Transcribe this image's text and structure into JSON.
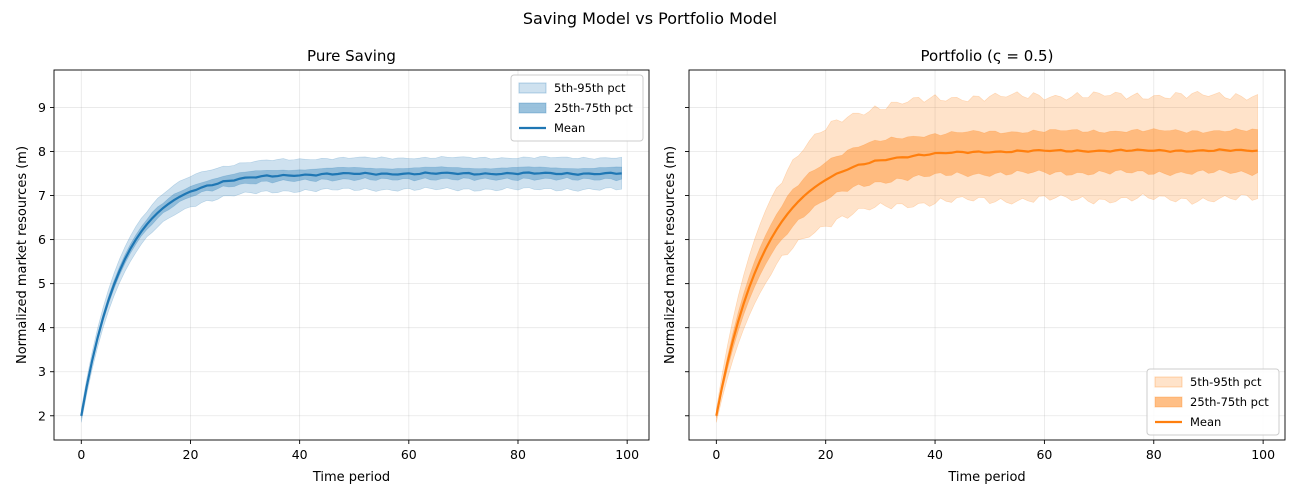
{
  "figure": {
    "title": "Saving Model vs Portfolio Model",
    "colors": {
      "blue": "#1f77b4",
      "orange": "#ff7f0e"
    }
  },
  "chart_data": [
    {
      "type": "area",
      "title": "Pure Saving",
      "xlabel": "Time period",
      "ylabel": "Normalized market resources (m)",
      "xlim": [
        -5,
        104
      ],
      "ylim": [
        1.45,
        9.85
      ],
      "xticks": [
        0,
        20,
        40,
        60,
        80,
        100
      ],
      "yticks": [
        2,
        3,
        4,
        5,
        6,
        7,
        8,
        9
      ],
      "grid": true,
      "legend_position": "top-right",
      "color": "#1f77b4",
      "x_range": [
        0,
        99
      ],
      "mean": {
        "start": 2.0,
        "end": 7.5,
        "rate": 0.13
      },
      "bands": [
        {
          "name": "5th-95th pct",
          "spread": 0.36,
          "start_spread": 0.15,
          "opacity": 0.22
        },
        {
          "name": "25th-75th pct",
          "spread": 0.13,
          "start_spread": 0.05,
          "opacity": 0.35
        }
      ],
      "mean_label": "Mean"
    },
    {
      "type": "area",
      "title": "Portfolio (ς = 0.5)",
      "xlabel": "Time period",
      "ylabel": "Normalized market resources (m)",
      "xlim": [
        -5,
        104
      ],
      "ylim": [
        1.45,
        9.85
      ],
      "xticks": [
        0,
        20,
        40,
        60,
        80,
        100
      ],
      "yticks": [
        2,
        3,
        4,
        5,
        6,
        7,
        8,
        9
      ],
      "grid": true,
      "legend_position": "bottom-right",
      "color": "#ff7f0e",
      "x_range": [
        0,
        99
      ],
      "mean": {
        "start": 2.0,
        "end": 8.02,
        "rate": 0.11
      },
      "bands": [
        {
          "name": "5th-95th pct",
          "spread_upper": 1.25,
          "spread_lower": 1.1,
          "start_spread": 0.15,
          "opacity": 0.22
        },
        {
          "name": "25th-75th pct",
          "spread_upper": 0.45,
          "spread_lower": 0.5,
          "start_spread": 0.05,
          "opacity": 0.4
        }
      ],
      "mean_label": "Mean"
    }
  ]
}
